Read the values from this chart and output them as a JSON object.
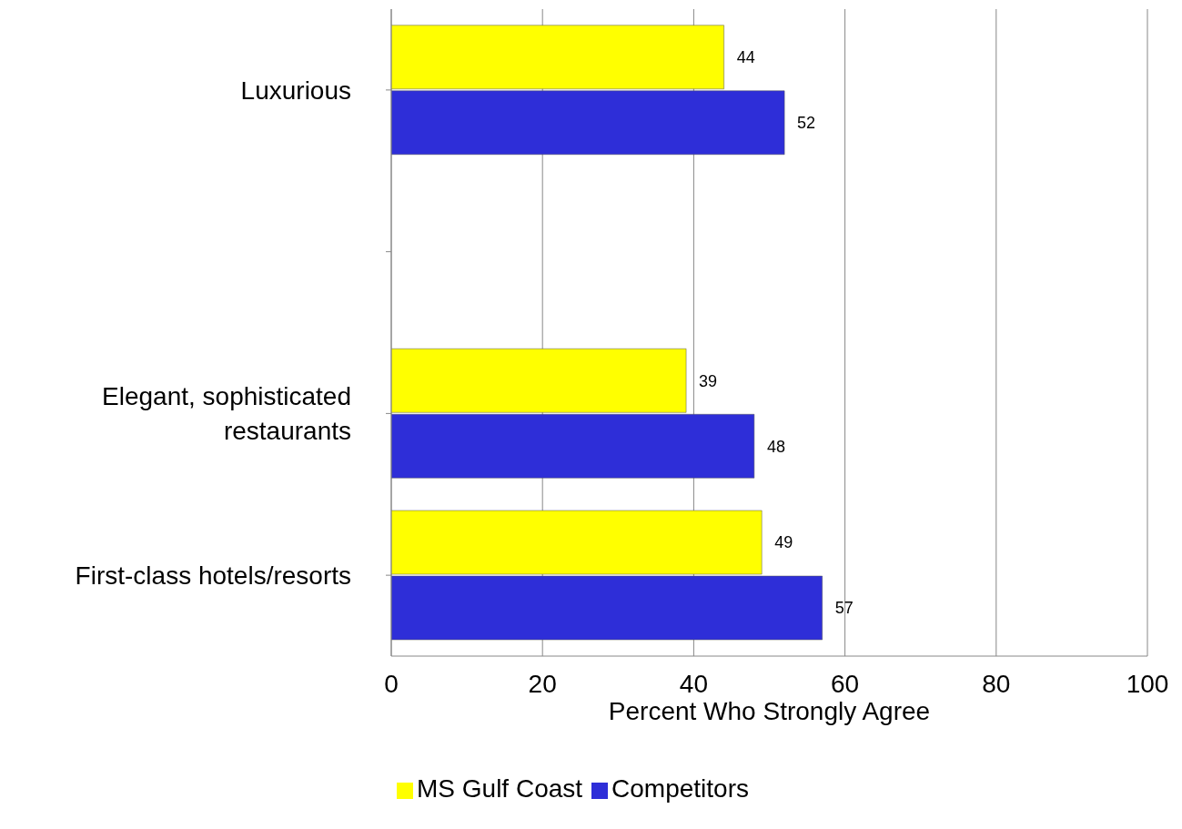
{
  "chart_data": {
    "type": "bar",
    "orientation": "horizontal",
    "xlabel": "Percent Who Strongly Agree",
    "categories": [
      "Luxurious",
      null,
      "Elegant, sophisticated restaurants",
      "First-class hotels/resorts"
    ],
    "series": [
      {
        "name": "MS Gulf Coast",
        "color": "#ffff00",
        "values": [
          44,
          null,
          39,
          49
        ]
      },
      {
        "name": "Competitors",
        "color": "#2e2ed8",
        "values": [
          52,
          null,
          48,
          57
        ]
      }
    ],
    "xlim": [
      0,
      100
    ],
    "xticks": [
      0,
      20,
      40,
      60,
      80,
      100
    ],
    "grid": "x",
    "legend": "bottom",
    "data_labels": true
  }
}
